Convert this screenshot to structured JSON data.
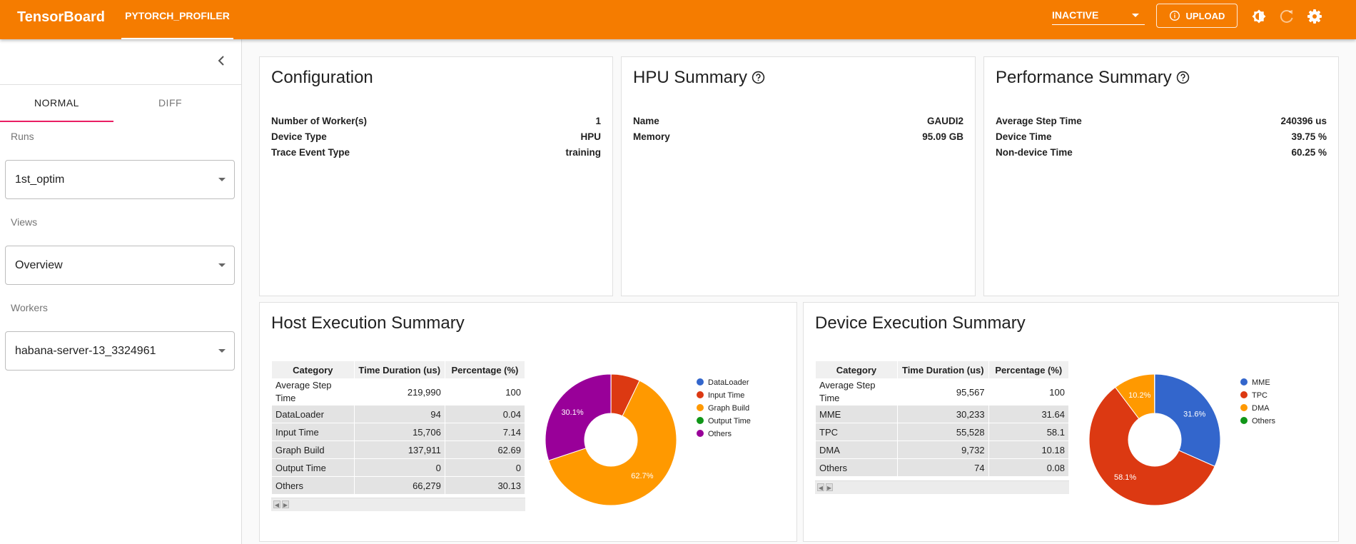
{
  "app": {
    "title": "TensorBoard",
    "plugin_tab": "PYTORCH_PROFILER"
  },
  "toolbar": {
    "status_select": "INACTIVE",
    "upload_label": "UPLOAD",
    "icons": [
      "brightness-icon",
      "refresh-icon",
      "settings-icon"
    ]
  },
  "sidebar": {
    "tabs": [
      "NORMAL",
      "DIFF"
    ],
    "active_tab": "NORMAL",
    "runs_label": "Runs",
    "runs_value": "1st_optim",
    "views_label": "Views",
    "views_value": "Overview",
    "workers_label": "Workers",
    "workers_value": "habana-server-13_3324961"
  },
  "configuration": {
    "title": "Configuration",
    "rows": [
      {
        "k": "Number of Worker(s)",
        "v": "1"
      },
      {
        "k": "Device Type",
        "v": "HPU"
      },
      {
        "k": "Trace Event Type",
        "v": "training"
      }
    ]
  },
  "hpu_summary": {
    "title": "HPU Summary",
    "rows": [
      {
        "k": "Name",
        "v": "GAUDI2"
      },
      {
        "k": "Memory",
        "v": "95.09 GB"
      }
    ]
  },
  "performance_summary": {
    "title": "Performance Summary",
    "rows": [
      {
        "k": "Average Step Time",
        "v": "240396 us"
      },
      {
        "k": "Device Time",
        "v": "39.75 %"
      },
      {
        "k": "Non-device Time",
        "v": "60.25 %"
      }
    ]
  },
  "host_execution": {
    "title": "Host Execution Summary",
    "columns": [
      "Category",
      "Time Duration (us)",
      "Percentage (%)"
    ],
    "rows": [
      [
        "Average Step Time",
        "219,990",
        "100"
      ],
      [
        "DataLoader",
        "94",
        "0.04"
      ],
      [
        "Input Time",
        "15,706",
        "7.14"
      ],
      [
        "Graph Build",
        "137,911",
        "62.69"
      ],
      [
        "Output Time",
        "0",
        "0"
      ],
      [
        "Others",
        "66,279",
        "30.13"
      ]
    ]
  },
  "device_execution": {
    "title": "Device Execution Summary",
    "columns": [
      "Category",
      "Time Duration (us)",
      "Percentage (%)"
    ],
    "rows": [
      [
        "Average Step Time",
        "95,567",
        "100"
      ],
      [
        "MME",
        "30,233",
        "31.64"
      ],
      [
        "TPC",
        "55,528",
        "58.1"
      ],
      [
        "DMA",
        "9,732",
        "10.18"
      ],
      [
        "Others",
        "74",
        "0.08"
      ]
    ]
  },
  "colors": {
    "accent": "#f57c00",
    "tab_indicator": "#e91e63",
    "blue": "#3366cc",
    "red": "#dc3912",
    "orange": "#ff9900",
    "green": "#109618",
    "purple": "#990099"
  },
  "chart_data": [
    {
      "type": "pie",
      "donut": true,
      "legend_position": "right",
      "labels": [
        "DataLoader",
        "Input Time",
        "Graph Build",
        "Output Time",
        "Others"
      ],
      "values": [
        94,
        15706,
        137911,
        0,
        66279
      ],
      "colors": [
        "#3366cc",
        "#dc3912",
        "#ff9900",
        "#109618",
        "#990099"
      ],
      "slice_labels": [
        "",
        "",
        "62.7%",
        "",
        "30.1%"
      ]
    },
    {
      "type": "pie",
      "donut": true,
      "legend_position": "right",
      "labels": [
        "MME",
        "TPC",
        "DMA",
        "Others"
      ],
      "values": [
        30233,
        55528,
        9732,
        74
      ],
      "colors": [
        "#3366cc",
        "#dc3912",
        "#ff9900",
        "#109618"
      ],
      "slice_labels": [
        "31.6%",
        "58.1%",
        "10.2%",
        ""
      ]
    }
  ]
}
